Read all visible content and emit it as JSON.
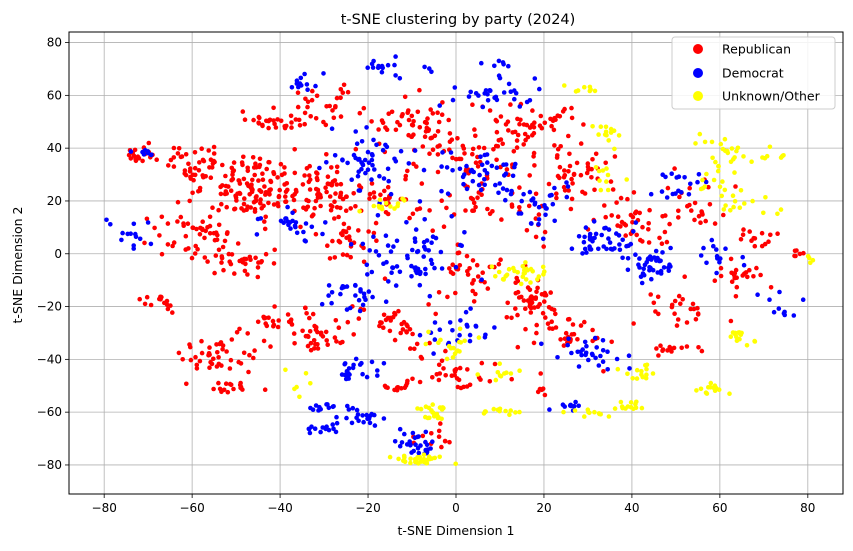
{
  "chart_data": {
    "type": "scatter",
    "title": "t-SNE clustering by party (2024)",
    "xlabel": "t-SNE Dimension 1",
    "ylabel": "t-SNE Dimension 2",
    "xlim": [
      -88,
      88
    ],
    "ylim": [
      -91,
      84
    ],
    "x_ticks": [
      -80,
      -60,
      -40,
      -20,
      0,
      20,
      40,
      60,
      80
    ],
    "y_ticks": [
      -80,
      -60,
      -40,
      -20,
      0,
      20,
      40,
      60,
      80
    ],
    "x_tick_labels": [
      "−80",
      "−60",
      "−40",
      "−20",
      "0",
      "20",
      "40",
      "60",
      "80"
    ],
    "y_tick_labels": [
      "−80",
      "−60",
      "−40",
      "−20",
      "0",
      "20",
      "40",
      "60",
      "80"
    ],
    "grid": true,
    "legend_position": "top-right",
    "series": [
      {
        "name": "Republican",
        "color": "#ff0000",
        "clusters": [
          {
            "x": -46,
            "y": 25,
            "sx": 6,
            "sy": 6,
            "n": 130
          },
          {
            "x": -60,
            "y": 33,
            "sx": 4,
            "sy": 4,
            "n": 45
          },
          {
            "x": -72,
            "y": 38,
            "sx": 2,
            "sy": 2,
            "n": 18
          },
          {
            "x": -60,
            "y": 8,
            "sx": 5,
            "sy": 5,
            "n": 45
          },
          {
            "x": -50,
            "y": -3,
            "sx": 4,
            "sy": 3,
            "n": 35
          },
          {
            "x": -42,
            "y": 50,
            "sx": 3,
            "sy": 2,
            "n": 25
          },
          {
            "x": -30,
            "y": 22,
            "sx": 5,
            "sy": 6,
            "n": 70
          },
          {
            "x": -25,
            "y": 5,
            "sx": 4,
            "sy": 4,
            "n": 30
          },
          {
            "x": -10,
            "y": 50,
            "sx": 6,
            "sy": 5,
            "n": 50
          },
          {
            "x": -30,
            "y": 55,
            "sx": 4,
            "sy": 4,
            "n": 30
          },
          {
            "x": 0,
            "y": 40,
            "sx": 5,
            "sy": 5,
            "n": 40
          },
          {
            "x": 15,
            "y": 48,
            "sx": 6,
            "sy": 6,
            "n": 60
          },
          {
            "x": 28,
            "y": 30,
            "sx": 5,
            "sy": 6,
            "n": 45
          },
          {
            "x": 40,
            "y": 10,
            "sx": 5,
            "sy": 5,
            "n": 40
          },
          {
            "x": 18,
            "y": -17,
            "sx": 3,
            "sy": 3,
            "n": 45
          },
          {
            "x": 5,
            "y": -8,
            "sx": 5,
            "sy": 5,
            "n": 35
          },
          {
            "x": -32,
            "y": -32,
            "sx": 3,
            "sy": 3,
            "n": 35
          },
          {
            "x": -55,
            "y": -40,
            "sx": 5,
            "sy": 5,
            "n": 45
          },
          {
            "x": -40,
            "y": -25,
            "sx": 4,
            "sy": 4,
            "n": 25
          },
          {
            "x": -52,
            "y": -51,
            "sx": 2,
            "sy": 1,
            "n": 14
          },
          {
            "x": -15,
            "y": -25,
            "sx": 5,
            "sy": 5,
            "n": 35
          },
          {
            "x": 0,
            "y": -45,
            "sx": 6,
            "sy": 4,
            "n": 35
          },
          {
            "x": 25,
            "y": -30,
            "sx": 5,
            "sy": 5,
            "n": 35
          },
          {
            "x": 50,
            "y": -20,
            "sx": 4,
            "sy": 4,
            "n": 25
          },
          {
            "x": 65,
            "y": -10,
            "sx": 3,
            "sy": 3,
            "n": 22
          },
          {
            "x": 50,
            "y": -36,
            "sx": 3,
            "sy": 1,
            "n": 14
          },
          {
            "x": 55,
            "y": 20,
            "sx": 4,
            "sy": 5,
            "n": 25
          },
          {
            "x": 68,
            "y": 5,
            "sx": 3,
            "sy": 2,
            "n": 14
          },
          {
            "x": 78,
            "y": 0,
            "sx": 1,
            "sy": 1,
            "n": 6
          },
          {
            "x": 10,
            "y": 20,
            "sx": 8,
            "sy": 8,
            "n": 50
          },
          {
            "x": -10,
            "y": 20,
            "sx": 6,
            "sy": 6,
            "n": 30
          },
          {
            "x": -13,
            "y": -51,
            "sx": 2,
            "sy": 2,
            "n": 12
          },
          {
            "x": -68,
            "y": -18,
            "sx": 2,
            "sy": 2,
            "n": 14
          },
          {
            "x": 20,
            "y": -52,
            "sx": 1,
            "sy": 1,
            "n": 6
          },
          {
            "x": -5,
            "y": -70,
            "sx": 3,
            "sy": 2,
            "n": 12
          }
        ]
      },
      {
        "name": "Democrat",
        "color": "#0000ff",
        "clusters": [
          {
            "x": -20,
            "y": 35,
            "sx": 5,
            "sy": 6,
            "n": 50
          },
          {
            "x": -10,
            "y": 0,
            "sx": 6,
            "sy": 8,
            "n": 70
          },
          {
            "x": 5,
            "y": 30,
            "sx": 5,
            "sy": 5,
            "n": 45
          },
          {
            "x": 10,
            "y": 60,
            "sx": 5,
            "sy": 3,
            "n": 30
          },
          {
            "x": 33,
            "y": 5,
            "sx": 4,
            "sy": 3,
            "n": 40
          },
          {
            "x": 45,
            "y": -5,
            "sx": 4,
            "sy": 4,
            "n": 40
          },
          {
            "x": -30,
            "y": -58,
            "sx": 3,
            "sy": 1,
            "n": 12
          },
          {
            "x": -30,
            "y": -67,
            "sx": 2,
            "sy": 1,
            "n": 12
          },
          {
            "x": -22,
            "y": -62,
            "sx": 3,
            "sy": 2,
            "n": 22
          },
          {
            "x": -8,
            "y": -73,
            "sx": 3,
            "sy": 2,
            "n": 30
          },
          {
            "x": -22,
            "y": -43,
            "sx": 3,
            "sy": 2,
            "n": 22
          },
          {
            "x": -75,
            "y": 8,
            "sx": 3,
            "sy": 3,
            "n": 14
          },
          {
            "x": -35,
            "y": 65,
            "sx": 2,
            "sy": 2,
            "n": 12
          },
          {
            "x": -15,
            "y": 70,
            "sx": 4,
            "sy": 2,
            "n": 18
          },
          {
            "x": 8,
            "y": 72,
            "sx": 2,
            "sy": 1,
            "n": 6
          },
          {
            "x": -37,
            "y": 10,
            "sx": 4,
            "sy": 4,
            "n": 25
          },
          {
            "x": 25,
            "y": -58,
            "sx": 2,
            "sy": 1,
            "n": 10
          },
          {
            "x": 30,
            "y": -38,
            "sx": 4,
            "sy": 3,
            "n": 30
          },
          {
            "x": 74,
            "y": -20,
            "sx": 2,
            "sy": 2,
            "n": 10
          },
          {
            "x": 20,
            "y": 20,
            "sx": 5,
            "sy": 5,
            "n": 30
          },
          {
            "x": -25,
            "y": -15,
            "sx": 4,
            "sy": 4,
            "n": 25
          },
          {
            "x": 50,
            "y": 25,
            "sx": 3,
            "sy": 3,
            "n": 18
          },
          {
            "x": 60,
            "y": 0,
            "sx": 3,
            "sy": 3,
            "n": 14
          },
          {
            "x": -70,
            "y": 38,
            "sx": 2,
            "sy": 1,
            "n": 8
          },
          {
            "x": 0,
            "y": -30,
            "sx": 5,
            "sy": 4,
            "n": 25
          }
        ]
      },
      {
        "name": "Unknown/Other",
        "color": "#ffff00",
        "clusters": [
          {
            "x": 62,
            "y": 40,
            "sx": 3,
            "sy": 3,
            "n": 20
          },
          {
            "x": 60,
            "y": 30,
            "sx": 3,
            "sy": 4,
            "n": 15
          },
          {
            "x": 65,
            "y": 18,
            "sx": 4,
            "sy": 3,
            "n": 14
          },
          {
            "x": 65,
            "y": -32,
            "sx": 2,
            "sy": 2,
            "n": 14
          },
          {
            "x": 57,
            "y": -51,
            "sx": 2,
            "sy": 1,
            "n": 14
          },
          {
            "x": 42,
            "y": -45,
            "sx": 2,
            "sy": 2,
            "n": 14
          },
          {
            "x": 40,
            "y": -58,
            "sx": 2,
            "sy": 1,
            "n": 12
          },
          {
            "x": 30,
            "y": -60,
            "sx": 3,
            "sy": 1,
            "n": 12
          },
          {
            "x": 10,
            "y": -60,
            "sx": 3,
            "sy": 1,
            "n": 12
          },
          {
            "x": -5,
            "y": -60,
            "sx": 2,
            "sy": 2,
            "n": 20
          },
          {
            "x": -8,
            "y": -78,
            "sx": 3,
            "sy": 1,
            "n": 30
          },
          {
            "x": 15,
            "y": -7,
            "sx": 3,
            "sy": 2,
            "n": 30
          },
          {
            "x": 35,
            "y": 45,
            "sx": 2,
            "sy": 2,
            "n": 14
          },
          {
            "x": 30,
            "y": 62,
            "sx": 2,
            "sy": 1,
            "n": 8
          },
          {
            "x": -15,
            "y": 18,
            "sx": 2,
            "sy": 2,
            "n": 14
          },
          {
            "x": 0,
            "y": -35,
            "sx": 3,
            "sy": 3,
            "n": 18
          },
          {
            "x": 72,
            "y": 37,
            "sx": 2,
            "sy": 1,
            "n": 6
          },
          {
            "x": 80,
            "y": -2,
            "sx": 1,
            "sy": 1,
            "n": 4
          },
          {
            "x": -35,
            "y": -48,
            "sx": 2,
            "sy": 2,
            "n": 6
          },
          {
            "x": 10,
            "y": -45,
            "sx": 3,
            "sy": 2,
            "n": 10
          },
          {
            "x": 35,
            "y": 28,
            "sx": 3,
            "sy": 2,
            "n": 10
          }
        ]
      }
    ]
  }
}
